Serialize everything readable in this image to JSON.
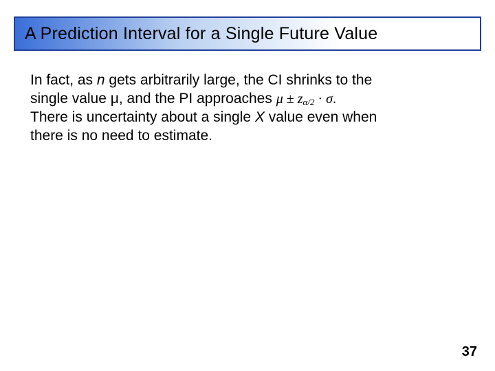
{
  "title": "A Prediction Interval for a Single Future Value",
  "body": {
    "line1_a": "In fact, as ",
    "n": "n",
    "line1_b": " gets arbitrarily large, the CI shrinks to the",
    "line2_a": "single value ",
    "mu": "μ",
    "line2_b": ", and the PI approaches ",
    "formula_mu": "μ",
    "formula_pm": " ± ",
    "formula_z": "z",
    "formula_sub": "α/2",
    "formula_dot": " · ",
    "formula_sigma": "σ",
    "formula_period": ".",
    "line3_a": "There is uncertainty about a single ",
    "X": "X",
    "line3_b": " value even when",
    "line4": "there is no need to estimate."
  },
  "pageNumber": "37",
  "colors": {
    "title_border": "#1f3f9a",
    "title_grad_start": "#3a6fd8",
    "title_grad_mid": "#b9d0f1",
    "title_grad_end": "#ffffff",
    "title_text": "#000000",
    "body_text": "#000000",
    "pagenum": "#000000"
  },
  "fontsizes": {
    "title": 25,
    "body": 21,
    "formula": 20,
    "formula_sub": 13,
    "pagenum": 20
  }
}
